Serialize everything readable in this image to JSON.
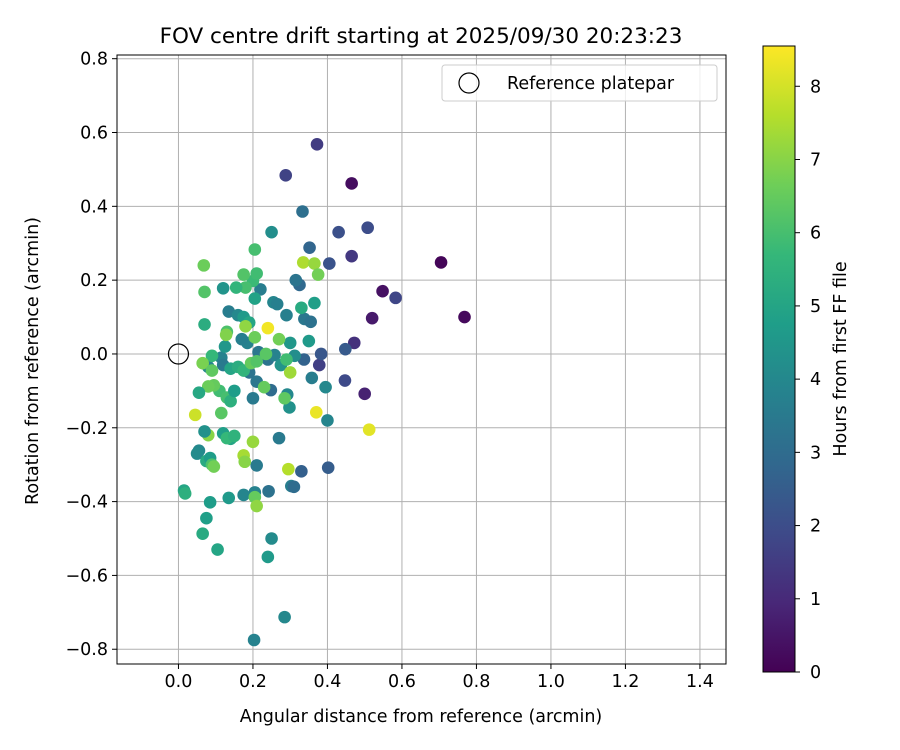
{
  "chart_data": {
    "type": "scatter",
    "title": "FOV centre drift starting at 2025/09/30 20:23:23",
    "xlabel": "Angular distance from reference (arcmin)",
    "ylabel": "Rotation from reference (arcmin)",
    "xlim": [
      -0.165,
      1.47
    ],
    "ylim": [
      -0.84,
      0.81
    ],
    "xticks": [
      0.0,
      0.2,
      0.4,
      0.6,
      0.8,
      1.0,
      1.2,
      1.4
    ],
    "xtick_labels": [
      "0.0",
      "0.2",
      "0.4",
      "0.6",
      "0.8",
      "1.0",
      "1.2",
      "1.4"
    ],
    "yticks": [
      -0.8,
      -0.6,
      -0.4,
      -0.2,
      0.0,
      0.2,
      0.4,
      0.6,
      0.8
    ],
    "ytick_labels": [
      "−0.8",
      "−0.6",
      "−0.4",
      "−0.2",
      "0.0",
      "0.2",
      "0.4",
      "0.6",
      "0.8"
    ],
    "grid": true,
    "legend": {
      "placement": "top-right",
      "entries": [
        "Reference platepar"
      ]
    },
    "reference_point": {
      "x": 0.0,
      "y": 0.0
    },
    "colorbar": {
      "label": "Hours from first FF file",
      "range": [
        0,
        8.55
      ],
      "ticks": [
        0,
        1,
        2,
        3,
        4,
        5,
        6,
        7,
        8
      ],
      "tick_labels": [
        "0",
        "1",
        "2",
        "3",
        "4",
        "5",
        "6",
        "7",
        "8"
      ],
      "colormap": "viridis"
    },
    "points": [
      {
        "x": 0.705,
        "y": 0.248,
        "h": 0.1
      },
      {
        "x": 0.768,
        "y": 0.1,
        "h": 0.2
      },
      {
        "x": 0.465,
        "y": 0.462,
        "h": 0.3
      },
      {
        "x": 0.548,
        "y": 0.17,
        "h": 0.4
      },
      {
        "x": 0.52,
        "y": 0.097,
        "h": 0.6
      },
      {
        "x": 0.5,
        "y": -0.108,
        "h": 0.8
      },
      {
        "x": 0.472,
        "y": 0.03,
        "h": 1.2
      },
      {
        "x": 0.465,
        "y": 0.265,
        "h": 1.4
      },
      {
        "x": 0.372,
        "y": 0.568,
        "h": 1.5
      },
      {
        "x": 0.288,
        "y": 0.484,
        "h": 1.7
      },
      {
        "x": 0.583,
        "y": 0.152,
        "h": 1.8
      },
      {
        "x": 0.508,
        "y": 0.342,
        "h": 2.0
      },
      {
        "x": 0.43,
        "y": 0.33,
        "h": 2.1
      },
      {
        "x": 0.405,
        "y": 0.245,
        "h": 2.2
      },
      {
        "x": 0.378,
        "y": -0.03,
        "h": 1.6
      },
      {
        "x": 0.447,
        "y": -0.072,
        "h": 1.9
      },
      {
        "x": 0.448,
        "y": 0.013,
        "h": 2.4
      },
      {
        "x": 0.402,
        "y": -0.308,
        "h": 2.5
      },
      {
        "x": 0.33,
        "y": -0.318,
        "h": 2.6
      },
      {
        "x": 0.333,
        "y": 0.386,
        "h": 3.1
      },
      {
        "x": 0.352,
        "y": 0.288,
        "h": 2.8
      },
      {
        "x": 0.325,
        "y": 0.187,
        "h": 2.9
      },
      {
        "x": 0.315,
        "y": 0.2,
        "h": 3.3
      },
      {
        "x": 0.337,
        "y": -0.015,
        "h": 2.7
      },
      {
        "x": 0.383,
        "y": 0.0,
        "h": 2.3
      },
      {
        "x": 0.303,
        "y": -0.358,
        "h": 3.6
      },
      {
        "x": 0.31,
        "y": -0.36,
        "h": 3.0
      },
      {
        "x": 0.29,
        "y": 0.105,
        "h": 3.7
      },
      {
        "x": 0.338,
        "y": 0.095,
        "h": 3.4
      },
      {
        "x": 0.355,
        "y": 0.087,
        "h": 3.2
      },
      {
        "x": 0.292,
        "y": -0.11,
        "h": 4.0
      },
      {
        "x": 0.298,
        "y": -0.145,
        "h": 4.3
      },
      {
        "x": 0.27,
        "y": -0.228,
        "h": 3.5
      },
      {
        "x": 0.242,
        "y": -0.372,
        "h": 3.2
      },
      {
        "x": 0.205,
        "y": -0.375,
        "h": 3.8
      },
      {
        "x": 0.175,
        "y": -0.382,
        "h": 3.9
      },
      {
        "x": 0.21,
        "y": -0.302,
        "h": 3.5
      },
      {
        "x": 0.25,
        "y": -0.5,
        "h": 4.1
      },
      {
        "x": 0.24,
        "y": -0.55,
        "h": 4.6
      },
      {
        "x": 0.285,
        "y": -0.713,
        "h": 4.0
      },
      {
        "x": 0.203,
        "y": -0.775,
        "h": 3.8
      },
      {
        "x": 0.25,
        "y": 0.33,
        "h": 4.2
      },
      {
        "x": 0.255,
        "y": 0.14,
        "h": 3.9
      },
      {
        "x": 0.265,
        "y": 0.135,
        "h": 3.7
      },
      {
        "x": 0.22,
        "y": 0.175,
        "h": 3.6
      },
      {
        "x": 0.215,
        "y": 0.005,
        "h": 3.4
      },
      {
        "x": 0.24,
        "y": -0.015,
        "h": 3.3
      },
      {
        "x": 0.258,
        "y": -0.003,
        "h": 3.8
      },
      {
        "x": 0.275,
        "y": -0.03,
        "h": 4.4
      },
      {
        "x": 0.3,
        "y": 0.03,
        "h": 4.5
      },
      {
        "x": 0.312,
        "y": -0.005,
        "h": 4.2
      },
      {
        "x": 0.395,
        "y": -0.09,
        "h": 4.0
      },
      {
        "x": 0.4,
        "y": -0.18,
        "h": 3.9
      },
      {
        "x": 0.358,
        "y": -0.065,
        "h": 3.6
      },
      {
        "x": 0.35,
        "y": 0.035,
        "h": 4.6
      },
      {
        "x": 0.365,
        "y": 0.138,
        "h": 4.8
      },
      {
        "x": 0.33,
        "y": 0.125,
        "h": 5.2
      },
      {
        "x": 0.21,
        "y": -0.075,
        "h": 3.4
      },
      {
        "x": 0.248,
        "y": -0.098,
        "h": 3.0
      },
      {
        "x": 0.2,
        "y": -0.12,
        "h": 3.5
      },
      {
        "x": 0.19,
        "y": -0.05,
        "h": 3.3
      },
      {
        "x": 0.185,
        "y": 0.03,
        "h": 3.8
      },
      {
        "x": 0.17,
        "y": 0.04,
        "h": 3.7
      },
      {
        "x": 0.135,
        "y": 0.115,
        "h": 3.6
      },
      {
        "x": 0.16,
        "y": 0.105,
        "h": 4.0
      },
      {
        "x": 0.175,
        "y": 0.1,
        "h": 4.6
      },
      {
        "x": 0.19,
        "y": 0.085,
        "h": 5.0
      },
      {
        "x": 0.205,
        "y": 0.15,
        "h": 4.9
      },
      {
        "x": 0.2,
        "y": 0.198,
        "h": 5.8
      },
      {
        "x": 0.21,
        "y": 0.218,
        "h": 5.9
      },
      {
        "x": 0.175,
        "y": 0.215,
        "h": 6.2
      },
      {
        "x": 0.18,
        "y": 0.18,
        "h": 6.0
      },
      {
        "x": 0.205,
        "y": 0.283,
        "h": 6.0
      },
      {
        "x": 0.155,
        "y": 0.18,
        "h": 5.6
      },
      {
        "x": 0.12,
        "y": 0.178,
        "h": 4.4
      },
      {
        "x": 0.115,
        "y": -0.01,
        "h": 3.8
      },
      {
        "x": 0.12,
        "y": -0.03,
        "h": 3.5
      },
      {
        "x": 0.14,
        "y": -0.04,
        "h": 5.0
      },
      {
        "x": 0.16,
        "y": -0.035,
        "h": 5.3
      },
      {
        "x": 0.175,
        "y": -0.045,
        "h": 5.6
      },
      {
        "x": 0.11,
        "y": -0.1,
        "h": 5.9
      },
      {
        "x": 0.095,
        "y": -0.085,
        "h": 6.5
      },
      {
        "x": 0.08,
        "y": -0.088,
        "h": 6.6
      },
      {
        "x": 0.115,
        "y": -0.16,
        "h": 6.3
      },
      {
        "x": 0.13,
        "y": -0.118,
        "h": 6.0
      },
      {
        "x": 0.14,
        "y": -0.128,
        "h": 5.4
      },
      {
        "x": 0.15,
        "y": -0.1,
        "h": 4.7
      },
      {
        "x": 0.055,
        "y": -0.105,
        "h": 5.1
      },
      {
        "x": 0.08,
        "y": -0.035,
        "h": 3.9
      },
      {
        "x": 0.09,
        "y": -0.005,
        "h": 5.7
      },
      {
        "x": 0.065,
        "y": -0.025,
        "h": 6.8
      },
      {
        "x": 0.09,
        "y": -0.045,
        "h": 6.4
      },
      {
        "x": 0.13,
        "y": 0.06,
        "h": 6.1
      },
      {
        "x": 0.125,
        "y": 0.02,
        "h": 4.5
      },
      {
        "x": 0.07,
        "y": 0.08,
        "h": 5.3
      },
      {
        "x": 0.068,
        "y": 0.24,
        "h": 6.6
      },
      {
        "x": 0.07,
        "y": 0.168,
        "h": 6.2
      },
      {
        "x": 0.128,
        "y": 0.052,
        "h": 6.9
      },
      {
        "x": 0.18,
        "y": 0.075,
        "h": 7.1
      },
      {
        "x": 0.205,
        "y": 0.045,
        "h": 6.6
      },
      {
        "x": 0.195,
        "y": -0.025,
        "h": 6.5
      },
      {
        "x": 0.21,
        "y": -0.02,
        "h": 6.2
      },
      {
        "x": 0.23,
        "y": -0.09,
        "h": 6.5
      },
      {
        "x": 0.235,
        "y": 0.0,
        "h": 6.3
      },
      {
        "x": 0.27,
        "y": 0.04,
        "h": 6.7
      },
      {
        "x": 0.29,
        "y": -0.015,
        "h": 5.9
      },
      {
        "x": 0.3,
        "y": -0.05,
        "h": 7.3
      },
      {
        "x": 0.285,
        "y": -0.12,
        "h": 6.4
      },
      {
        "x": 0.24,
        "y": 0.07,
        "h": 8.4
      },
      {
        "x": 0.335,
        "y": 0.248,
        "h": 7.5
      },
      {
        "x": 0.365,
        "y": 0.245,
        "h": 7.2
      },
      {
        "x": 0.375,
        "y": 0.215,
        "h": 6.7
      },
      {
        "x": 0.37,
        "y": -0.158,
        "h": 8.3
      },
      {
        "x": 0.512,
        "y": -0.205,
        "h": 8.2
      },
      {
        "x": 0.045,
        "y": -0.165,
        "h": 7.9
      },
      {
        "x": 0.08,
        "y": -0.22,
        "h": 7.0
      },
      {
        "x": 0.07,
        "y": -0.21,
        "h": 4.3
      },
      {
        "x": 0.12,
        "y": -0.215,
        "h": 4.8
      },
      {
        "x": 0.14,
        "y": -0.23,
        "h": 5.0
      },
      {
        "x": 0.13,
        "y": -0.228,
        "h": 5.7
      },
      {
        "x": 0.15,
        "y": -0.222,
        "h": 5.5
      },
      {
        "x": 0.175,
        "y": -0.275,
        "h": 7.4
      },
      {
        "x": 0.178,
        "y": -0.292,
        "h": 7.0
      },
      {
        "x": 0.2,
        "y": -0.238,
        "h": 7.2
      },
      {
        "x": 0.055,
        "y": -0.262,
        "h": 4.0
      },
      {
        "x": 0.05,
        "y": -0.27,
        "h": 4.1
      },
      {
        "x": 0.075,
        "y": -0.29,
        "h": 5.2
      },
      {
        "x": 0.085,
        "y": -0.282,
        "h": 4.7
      },
      {
        "x": 0.09,
        "y": -0.3,
        "h": 6.1
      },
      {
        "x": 0.095,
        "y": -0.305,
        "h": 6.7
      },
      {
        "x": 0.015,
        "y": -0.37,
        "h": 5.0
      },
      {
        "x": 0.018,
        "y": -0.378,
        "h": 5.4
      },
      {
        "x": 0.085,
        "y": -0.402,
        "h": 4.7
      },
      {
        "x": 0.135,
        "y": -0.39,
        "h": 4.6
      },
      {
        "x": 0.205,
        "y": -0.388,
        "h": 6.5
      },
      {
        "x": 0.21,
        "y": -0.412,
        "h": 7.1
      },
      {
        "x": 0.295,
        "y": -0.312,
        "h": 7.6
      },
      {
        "x": 0.075,
        "y": -0.445,
        "h": 4.8
      },
      {
        "x": 0.065,
        "y": -0.487,
        "h": 5.2
      },
      {
        "x": 0.105,
        "y": -0.53,
        "h": 5.0
      }
    ]
  }
}
